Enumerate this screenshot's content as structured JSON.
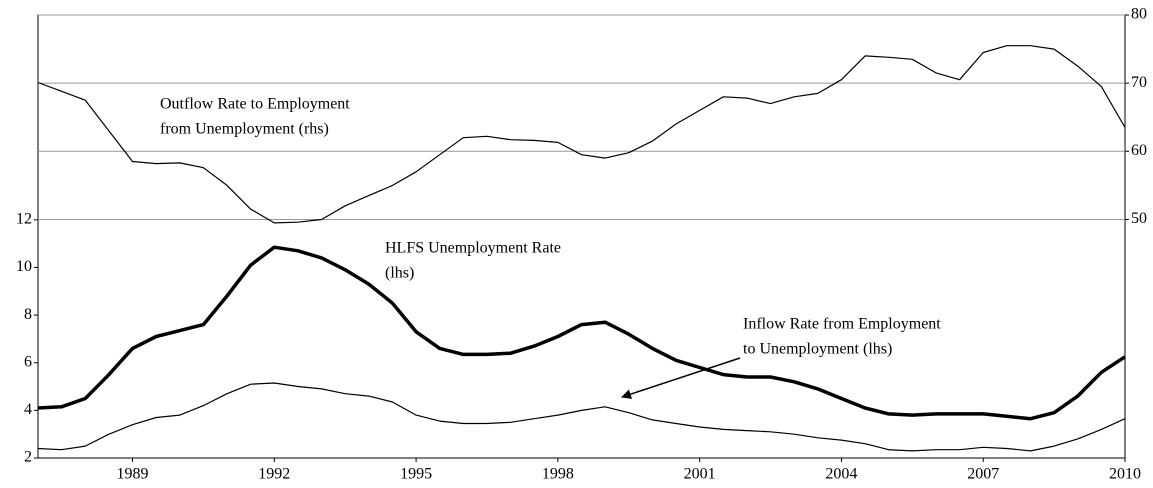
{
  "chart_data": {
    "type": "line",
    "x": [
      1987,
      1987.5,
      1988,
      1988.5,
      1989,
      1989.5,
      1990,
      1990.5,
      1991,
      1991.5,
      1992,
      1992.5,
      1993,
      1993.5,
      1994,
      1994.5,
      1995,
      1995.5,
      1996,
      1996.5,
      1997,
      1997.5,
      1998,
      1998.5,
      1999,
      1999.5,
      2000,
      2000.5,
      2001,
      2001.5,
      2002,
      2002.5,
      2003,
      2003.5,
      2004,
      2004.5,
      2005,
      2005.5,
      2006,
      2006.5,
      2007,
      2007.5,
      2008,
      2008.5,
      2009,
      2009.5,
      2010
    ],
    "series": [
      {
        "color": "#000000",
        "width": 1.2,
        "axis": "y2",
        "values": [
          70.1,
          68.8,
          67.5,
          63,
          58.5,
          58.2,
          58.3,
          57.6,
          55,
          51.5,
          49.5,
          49.6,
          50,
          52,
          53.5,
          55,
          57,
          59.5,
          62,
          62.2,
          61.7,
          61.6,
          61.3,
          59.5,
          59,
          59.8,
          61.5,
          64,
          66,
          68,
          67.8,
          67,
          68,
          68.5,
          70.5,
          74,
          73.8,
          73.5,
          71.5,
          70.5,
          74.5,
          75.5,
          75.5,
          75,
          72.5,
          69.5,
          63.5
        ]
      },
      {
        "color": "#000000",
        "width": 3.5,
        "axis": "y",
        "values": [
          4.1,
          4.15,
          4.5,
          5.5,
          6.6,
          7.1,
          7.35,
          7.6,
          8.8,
          10.1,
          10.85,
          10.7,
          10.4,
          9.9,
          9.3,
          8.5,
          7.3,
          6.6,
          6.35,
          6.35,
          6.4,
          6.7,
          7.1,
          7.6,
          7.7,
          7.2,
          6.6,
          6.1,
          5.8,
          5.5,
          5.4,
          5.4,
          5.2,
          4.9,
          4.5,
          4.1,
          3.85,
          3.8,
          3.85,
          3.85,
          3.85,
          3.75,
          3.65,
          3.9,
          4.6,
          5.6,
          6.25
        ]
      },
      {
        "color": "#000000",
        "width": 1.2,
        "axis": "y",
        "values": [
          2.4,
          2.35,
          2.5,
          3.0,
          3.4,
          3.7,
          3.8,
          4.2,
          4.7,
          5.1,
          5.15,
          5.0,
          4.9,
          4.7,
          4.6,
          4.35,
          3.8,
          3.55,
          3.45,
          3.45,
          3.5,
          3.65,
          3.8,
          4.0,
          4.15,
          3.9,
          3.6,
          3.45,
          3.3,
          3.2,
          3.15,
          3.1,
          3.0,
          2.85,
          2.75,
          2.6,
          2.35,
          2.3,
          2.35,
          2.35,
          2.45,
          2.4,
          2.3,
          2.5,
          2.8,
          3.2,
          3.65
        ]
      }
    ],
    "xlim": [
      1987,
      2010
    ],
    "xticks": [
      1989,
      1992,
      1995,
      1998,
      2001,
      2004,
      2007,
      2010
    ],
    "ylim": [
      2,
      20.6
    ],
    "yticks": [
      2,
      4,
      6,
      8,
      10,
      12
    ],
    "y2lim": [
      15,
      80
    ],
    "y2ticks": [
      50,
      60,
      70,
      80
    ],
    "grid": "y2",
    "annotations": [
      {
        "lines": [
          "Outflow Rate to Employment",
          "from Unemployment (rhs)"
        ]
      },
      {
        "lines": [
          "HLFS Unemployment Rate",
          "(lhs)"
        ]
      },
      {
        "lines": [
          "Inflow Rate from Employment",
          "to Unemployment (lhs)"
        ]
      }
    ]
  }
}
